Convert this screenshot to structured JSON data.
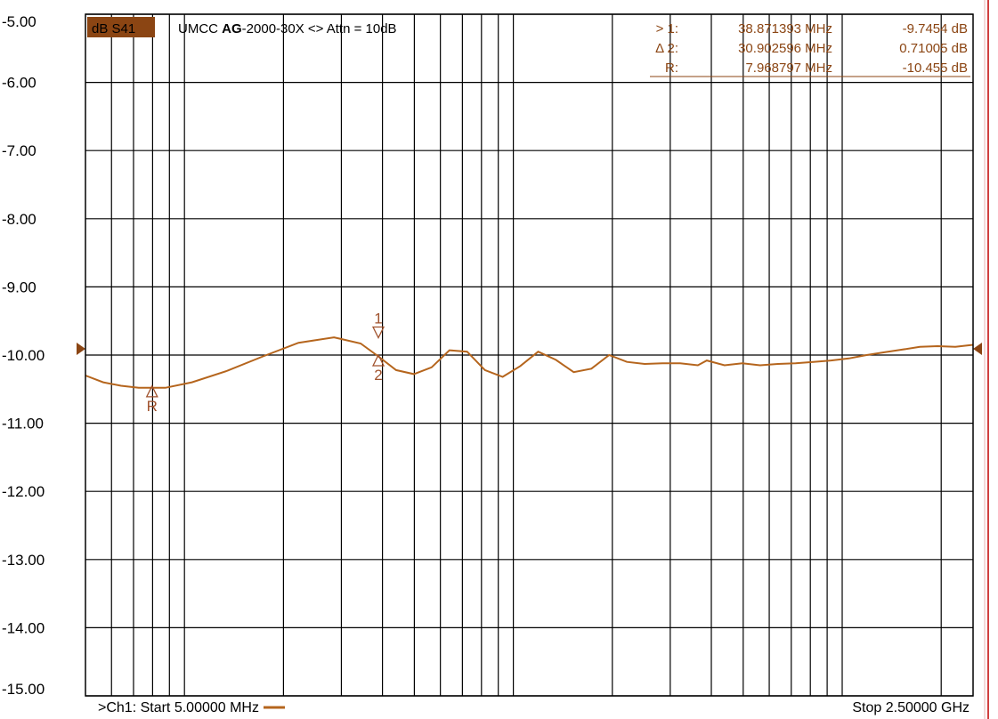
{
  "header": {
    "badge": "dB S41",
    "title_prefix": "UMCC ",
    "title_bold": "AG",
    "title_suffix": "-2000-30X <> Attn = 10dB",
    "badge_color": "#8b4513"
  },
  "markers_table": [
    {
      "id": "> 1:",
      "freq": "38.871393 MHz",
      "value": "-9.7454 dB"
    },
    {
      "id": "Δ 2:",
      "freq": "30.902596 MHz",
      "value": "0.71005 dB"
    },
    {
      "id": "R:",
      "freq": "7.968797 MHz",
      "value": "-10.455 dB"
    }
  ],
  "footer": {
    "start": ">Ch1: Start  5.00000 MHz",
    "stop": "Stop  2.50000 GHz"
  },
  "colors": {
    "trace": "#b5651d",
    "grid": "#000000",
    "marker": "#8b4513",
    "edge": "#d04040"
  },
  "chart_data": {
    "type": "line",
    "title": "",
    "xlabel": "",
    "ylabel": "",
    "xlim_label": [
      "5.00000 MHz",
      "2.50000 GHz"
    ],
    "ylim": [
      -15,
      -5
    ],
    "y_ticks": [
      "-5.00",
      "-6.00",
      "-7.00",
      "-8.00",
      "-9.00",
      "-10.00",
      "-11.00",
      "-12.00",
      "-13.00",
      "-14.00",
      "-15.00"
    ],
    "reference_level": -10,
    "grid": true,
    "series": [
      {
        "x_fraction": [
          0,
          0.02,
          0.04,
          0.06,
          0.09,
          0.12,
          0.16,
          0.2,
          0.24,
          0.28,
          0.31,
          0.33,
          0.35,
          0.37,
          0.39,
          0.41,
          0.43,
          0.45,
          0.47,
          0.49,
          0.51,
          0.53,
          0.55,
          0.57,
          0.59,
          0.61,
          0.63,
          0.65,
          0.67,
          0.69,
          0.7,
          0.72,
          0.74,
          0.76,
          0.78,
          0.8,
          0.82,
          0.84,
          0.86,
          0.88,
          0.9,
          0.92,
          0.94,
          0.96,
          0.98,
          1.0
        ],
        "y": [
          -10.3,
          -10.4,
          -10.45,
          -10.48,
          -10.48,
          -10.4,
          -10.23,
          -10.02,
          -9.82,
          -9.74,
          -9.83,
          -10.02,
          -10.22,
          -10.28,
          -10.18,
          -9.93,
          -9.95,
          -10.22,
          -10.32,
          -10.16,
          -9.95,
          -10.07,
          -10.25,
          -10.2,
          -10.0,
          -10.1,
          -10.13,
          -10.12,
          -10.12,
          -10.15,
          -10.08,
          -10.15,
          -10.12,
          -10.15,
          -10.13,
          -10.12,
          -10.1,
          -10.08,
          -10.05,
          -10.0,
          -9.96,
          -9.92,
          -9.88,
          -9.87,
          -9.88,
          -9.85
        ]
      }
    ],
    "markers": [
      {
        "label": "1",
        "x_fraction": 0.33,
        "y": -9.7454,
        "symbol": "down-triangle"
      },
      {
        "label": "2",
        "x_fraction": 0.33,
        "y": -10.0,
        "symbol": "up-triangle"
      },
      {
        "label": "R",
        "x_fraction": 0.075,
        "y": -10.455,
        "symbol": "up-triangle"
      }
    ]
  }
}
